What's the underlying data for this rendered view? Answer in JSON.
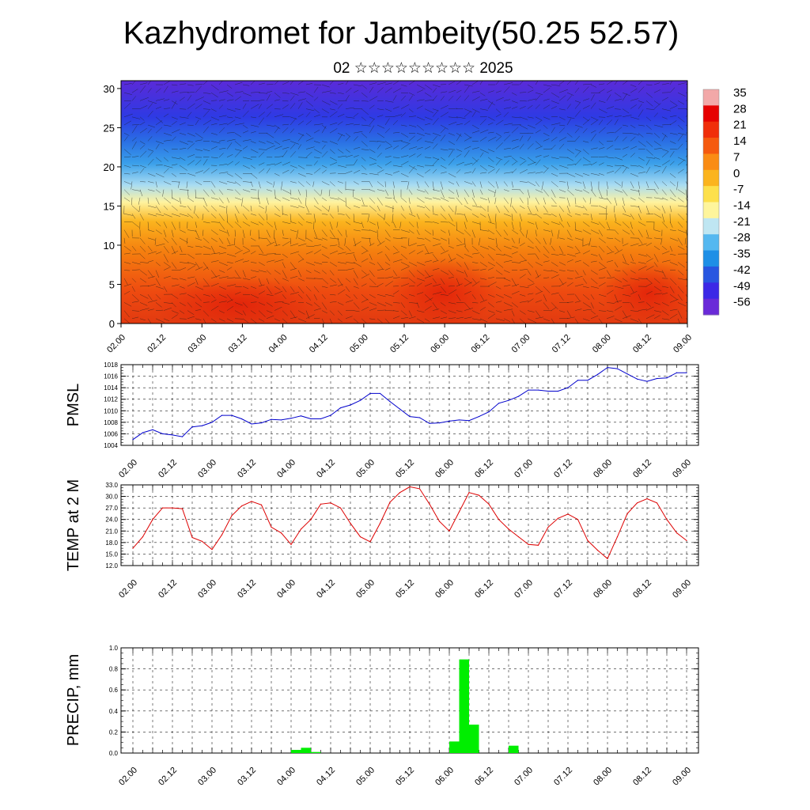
{
  "header": {
    "title": "Kazhydromet for Jambeity(50.25 52.57)",
    "subtitle": "02 ☆☆☆☆☆☆☆☆☆ 2025"
  },
  "time_labels": [
    "02.00",
    "02.12",
    "03.00",
    "03.12",
    "04.00",
    "04.12",
    "05.00",
    "05.12",
    "06.00",
    "06.12",
    "07.00",
    "07.12",
    "08.00",
    "08.12",
    "09.00"
  ],
  "chart_data": [
    {
      "type": "heatmap",
      "description_of_fields": "temperature cross-section with wind vectors",
      "y_ticks": [
        0,
        5,
        10,
        15,
        20,
        25,
        30
      ],
      "ylim": [
        0,
        31
      ],
      "colorbar": {
        "labels": [
          "35",
          "28",
          "21",
          "14",
          "7",
          "0",
          "-7",
          "-14",
          "-21",
          "-28",
          "-35",
          "-42",
          "-49",
          "-56"
        ],
        "colors": [
          "#f2a8a8",
          "#e60000",
          "#f02e0a",
          "#f55a0f",
          "#fa8c14",
          "#fbb41e",
          "#fde04b",
          "#fef59c",
          "#bfe6f2",
          "#55b8f0",
          "#1e8fe6",
          "#2856e0",
          "#3c28e6",
          "#6a2ad8"
        ]
      }
    },
    {
      "type": "line",
      "ylabel": "PMSL",
      "ylim": [
        1004,
        1018
      ],
      "y_ticks": [
        "1004",
        "1006",
        "1008",
        "1010",
        "1012",
        "1014",
        "1016",
        "1018"
      ],
      "color": "#0000cc",
      "x": [
        0,
        3,
        6,
        9,
        12,
        15,
        18,
        21,
        24,
        27,
        30,
        33,
        36,
        39,
        42,
        45,
        48,
        51,
        54,
        57,
        60,
        63,
        66,
        69,
        72,
        75,
        78,
        81,
        84,
        87,
        90,
        93,
        96,
        99,
        102,
        105,
        108,
        111,
        114,
        117,
        120,
        123,
        126,
        129,
        132,
        135,
        138,
        141,
        144,
        147,
        150,
        153,
        156,
        159,
        162,
        165,
        168
      ],
      "values": [
        1005,
        1006.2,
        1006.7,
        1006,
        1005.8,
        1005.5,
        1007.2,
        1007.4,
        1008,
        1009.2,
        1009.2,
        1008.6,
        1007.7,
        1007.9,
        1008.5,
        1008.4,
        1008.7,
        1009.1,
        1008.6,
        1008.6,
        1009.2,
        1010.5,
        1011,
        1011.8,
        1013,
        1013,
        1011.6,
        1010.3,
        1009,
        1008.8,
        1007.8,
        1007.9,
        1008.2,
        1008.4,
        1008.3,
        1009,
        1009.8,
        1011.3,
        1011.8,
        1012.5,
        1013.6,
        1013.6,
        1013.4,
        1013.4,
        1014,
        1015.3,
        1015.3,
        1016.3,
        1017.5,
        1017.3,
        1016.4,
        1015.5,
        1015.1,
        1015.6,
        1015.7,
        1016.6,
        1016.6
      ]
    },
    {
      "type": "line",
      "ylabel": "TEMP at 2 M",
      "ylim": [
        12,
        33
      ],
      "y_ticks": [
        "12.0",
        "15.0",
        "18.0",
        "21.0",
        "24.0",
        "27.0",
        "30.0",
        "33.0"
      ],
      "color": "#dd0000",
      "x": [
        0,
        3,
        6,
        9,
        12,
        15,
        18,
        21,
        24,
        27,
        30,
        33,
        36,
        39,
        42,
        45,
        48,
        51,
        54,
        57,
        60,
        63,
        66,
        69,
        72,
        75,
        78,
        81,
        84,
        87,
        90,
        93,
        96,
        99,
        102,
        105,
        108,
        111,
        114,
        117,
        120,
        123,
        126,
        129,
        132,
        135,
        138,
        141,
        144,
        147,
        150,
        153,
        156,
        159,
        162,
        165,
        168
      ],
      "values": [
        16.5,
        19.5,
        24,
        27,
        27,
        26.8,
        19.3,
        18.3,
        16.2,
        20,
        25,
        27.5,
        28.7,
        27.8,
        22,
        20.5,
        17.5,
        21.5,
        24,
        28,
        28.3,
        27,
        23,
        19.5,
        18.2,
        23,
        28.5,
        31,
        32.5,
        32,
        28,
        23.5,
        21,
        26,
        31,
        30.3,
        28,
        24,
        21.5,
        19.5,
        17.5,
        17.3,
        22,
        24.3,
        25.4,
        24,
        18.5,
        16,
        13.8,
        19.5,
        25.5,
        28.3,
        29.4,
        28.3,
        24,
        20.5,
        18.5
      ]
    },
    {
      "type": "bar",
      "ylabel": "PRECIP, mm",
      "ylim": [
        0,
        1
      ],
      "y_ticks": [
        "0.0",
        "0.2",
        "0.4",
        "0.6",
        "0.8",
        "1.0"
      ],
      "color": "#00ee00",
      "bar_x": [
        51,
        54,
        57,
        99,
        102,
        105,
        117
      ],
      "values": [
        0.03,
        0.05,
        0.01,
        0.11,
        0.89,
        0.27,
        0.07
      ]
    }
  ]
}
